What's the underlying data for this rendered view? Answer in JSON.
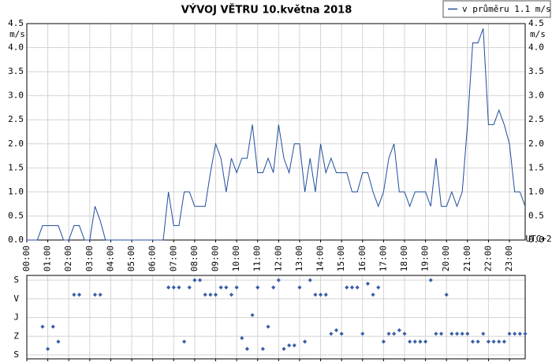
{
  "chart_data": [
    {
      "type": "line",
      "title": "VÝVOJ VĚTRU  10.května 2018",
      "y_label": "m/s",
      "x_label": "UTC+2",
      "x": [
        0,
        0.25,
        0.5,
        0.75,
        1,
        1.25,
        1.5,
        1.75,
        2,
        2.25,
        2.5,
        2.75,
        3,
        3.25,
        3.5,
        3.75,
        4,
        4.25,
        4.5,
        4.75,
        5,
        5.25,
        5.5,
        5.75,
        6,
        6.25,
        6.5,
        6.75,
        7,
        7.25,
        7.5,
        7.75,
        8,
        8.25,
        8.5,
        8.75,
        9,
        9.25,
        9.5,
        9.75,
        10,
        10.25,
        10.5,
        10.75,
        11,
        11.25,
        11.5,
        11.75,
        12,
        12.25,
        12.5,
        12.75,
        13,
        13.25,
        13.5,
        13.75,
        14,
        14.25,
        14.5,
        14.75,
        15,
        15.25,
        15.5,
        15.75,
        16,
        16.25,
        16.5,
        16.75,
        17,
        17.25,
        17.5,
        17.75,
        18,
        18.25,
        18.5,
        18.75,
        19,
        19.25,
        19.5,
        19.75,
        20,
        20.25,
        20.5,
        20.75,
        21,
        21.25,
        21.5,
        21.75,
        22,
        22.25,
        22.5,
        22.75,
        23,
        23.25,
        23.5,
        23.75
      ],
      "series": [
        {
          "name": "v průměru 1.1 m/s",
          "color": "#1f4e9c",
          "values": [
            0,
            0,
            0,
            0.3,
            0.3,
            0.3,
            0.3,
            0,
            0,
            0.3,
            0.3,
            0,
            0,
            0.7,
            0.4,
            0,
            0,
            0,
            0,
            0,
            0,
            0,
            0,
            0,
            0,
            0,
            0,
            1.0,
            0.3,
            0.3,
            1.0,
            1.0,
            0.7,
            0.7,
            0.7,
            1.4,
            2.0,
            1.7,
            1.0,
            1.7,
            1.4,
            1.7,
            1.7,
            2.4,
            1.4,
            1.4,
            1.7,
            1.4,
            2.4,
            1.7,
            1.4,
            2.0,
            2.0,
            1.0,
            1.7,
            1.0,
            2.0,
            1.4,
            1.7,
            1.4,
            1.4,
            1.4,
            1.0,
            1.0,
            1.4,
            1.4,
            1.0,
            0.7,
            1.0,
            1.7,
            2.0,
            1.0,
            1.0,
            0.7,
            1.0,
            1.0,
            1.0,
            0.7,
            1.7,
            0.7,
            0.7,
            1.0,
            0.7,
            1.0,
            2.4,
            4.1,
            4.1,
            4.4,
            2.4,
            2.4,
            2.7,
            2.4,
            2.0,
            1.0,
            1.0,
            0.7
          ]
        }
      ],
      "xlim": [
        0,
        23.75
      ],
      "xticks": [
        {
          "value": 0,
          "label": "00:00"
        },
        {
          "value": 1,
          "label": "01:00"
        },
        {
          "value": 2,
          "label": "02:00"
        },
        {
          "value": 3,
          "label": "03:00"
        },
        {
          "value": 4,
          "label": "04:00"
        },
        {
          "value": 5,
          "label": "05:00"
        },
        {
          "value": 6,
          "label": "06:00"
        },
        {
          "value": 7,
          "label": "07:00"
        },
        {
          "value": 8,
          "label": "08:00"
        },
        {
          "value": 9,
          "label": "09:00"
        },
        {
          "value": 10,
          "label": "10:00"
        },
        {
          "value": 11,
          "label": "11:00"
        },
        {
          "value": 12,
          "label": "12:00"
        },
        {
          "value": 13,
          "label": "13:00"
        },
        {
          "value": 14,
          "label": "14:00"
        },
        {
          "value": 15,
          "label": "15:00"
        },
        {
          "value": 16,
          "label": "16:00"
        },
        {
          "value": 17,
          "label": "17:00"
        },
        {
          "value": 18,
          "label": "18:00"
        },
        {
          "value": 19,
          "label": "19:00"
        },
        {
          "value": 20,
          "label": "20:00"
        },
        {
          "value": 21,
          "label": "21:00"
        },
        {
          "value": 22,
          "label": "22:00"
        },
        {
          "value": 23,
          "label": "23:00"
        }
      ],
      "ylim": [
        0,
        4.5
      ],
      "yticks": [
        {
          "value": 0,
          "label": "0.0"
        },
        0.5,
        {
          "value": 1,
          "label": "1.0"
        },
        1.5,
        {
          "value": 2,
          "label": "2.0"
        },
        2.5,
        {
          "value": 3,
          "label": "3.0"
        },
        3.5,
        {
          "value": 4,
          "label": "4.0"
        },
        4.5
      ],
      "grid": true,
      "legend": "top-right"
    },
    {
      "type": "scatter",
      "x": [
        0,
        0.25,
        0.5,
        0.75,
        1,
        1.25,
        1.5,
        1.75,
        2,
        2.25,
        2.5,
        2.75,
        3,
        3.25,
        3.5,
        3.75,
        4,
        4.25,
        4.5,
        4.75,
        5,
        5.25,
        5.5,
        5.75,
        6,
        6.25,
        6.5,
        6.75,
        7,
        7.25,
        7.5,
        7.75,
        8,
        8.25,
        8.5,
        8.75,
        9,
        9.25,
        9.5,
        9.75,
        10,
        10.25,
        10.5,
        10.75,
        11,
        11.25,
        11.5,
        11.75,
        12,
        12.25,
        12.5,
        12.75,
        13,
        13.25,
        13.5,
        13.75,
        14,
        14.25,
        14.5,
        14.75,
        15,
        15.25,
        15.5,
        15.75,
        16,
        16.25,
        16.5,
        16.75,
        17,
        17.25,
        17.5,
        17.75,
        18,
        18.25,
        18.5,
        18.75,
        19,
        19.25,
        19.5,
        19.75,
        20,
        20.25,
        20.5,
        20.75,
        21,
        21.25,
        21.5,
        21.75,
        22,
        22.25,
        22.5,
        22.75,
        23,
        23.25,
        23.5,
        23.75
      ],
      "series": [
        {
          "color": "#3a5fa8",
          "values": [
            null,
            null,
            null,
            224,
            331,
            224,
            296,
            null,
            null,
            70,
            70,
            null,
            null,
            70,
            70,
            null,
            null,
            null,
            null,
            null,
            null,
            null,
            null,
            null,
            null,
            null,
            null,
            35,
            35,
            35,
            296,
            35,
            0,
            0,
            70,
            70,
            70,
            35,
            35,
            70,
            35,
            279,
            331,
            168,
            35,
            331,
            224,
            35,
            0,
            331,
            314,
            314,
            35,
            296,
            0,
            70,
            70,
            70,
            258,
            241,
            258,
            35,
            35,
            35,
            258,
            17,
            70,
            35,
            296,
            258,
            258,
            241,
            258,
            296,
            296,
            296,
            296,
            0,
            258,
            258,
            70,
            258,
            258,
            258,
            258,
            296,
            296,
            258,
            296,
            296,
            296,
            296,
            258,
            258,
            258,
            258
          ]
        }
      ],
      "xlim": [
        0,
        23.75
      ],
      "xticks": [
        0,
        1,
        2,
        3,
        4,
        5,
        6,
        7,
        8,
        9,
        10,
        11,
        12,
        13,
        14,
        15,
        16,
        17,
        18,
        19,
        20,
        21,
        22,
        23
      ],
      "ylim": [
        0,
        360
      ],
      "yticks": [
        {
          "value": 0,
          "label": "S"
        },
        {
          "value": 90,
          "label": "V"
        },
        {
          "value": 180,
          "label": "J"
        },
        {
          "value": 270,
          "label": "Z"
        },
        {
          "value": 360,
          "label": "S"
        }
      ],
      "grid": true
    }
  ]
}
